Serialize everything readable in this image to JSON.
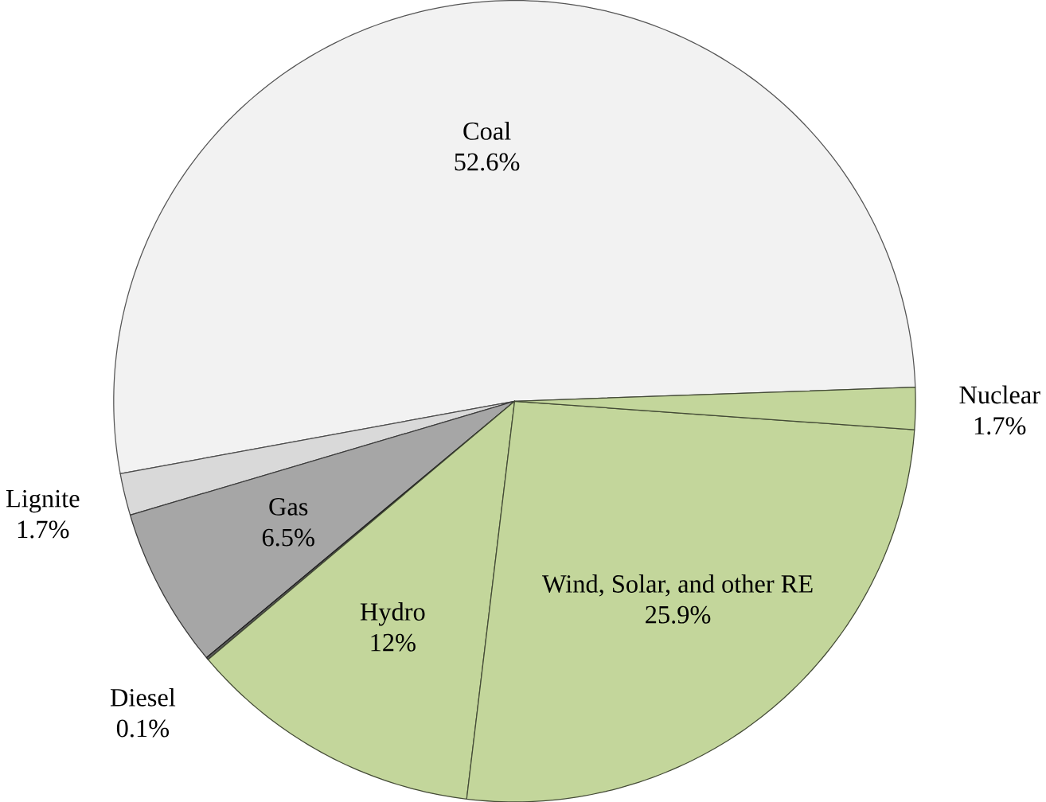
{
  "chart_data": {
    "type": "pie",
    "categories": [
      "Coal",
      "Lignite",
      "Gas",
      "Diesel",
      "Hydro",
      "Wind, Solar, and other RE",
      "Nuclear"
    ],
    "values": [
      52.6,
      1.7,
      6.5,
      0.1,
      12,
      25.9,
      1.7
    ],
    "value_labels": [
      "52.6%",
      "1.7%",
      "6.5%",
      "0.1%",
      "12%",
      "25.9%",
      "1.7%"
    ],
    "colors": [
      "#f2f2f2",
      "#d9d9d9",
      "#a6a6a6",
      "#595959",
      "#c3d69b",
      "#c3d69b",
      "#c3d69b"
    ]
  }
}
